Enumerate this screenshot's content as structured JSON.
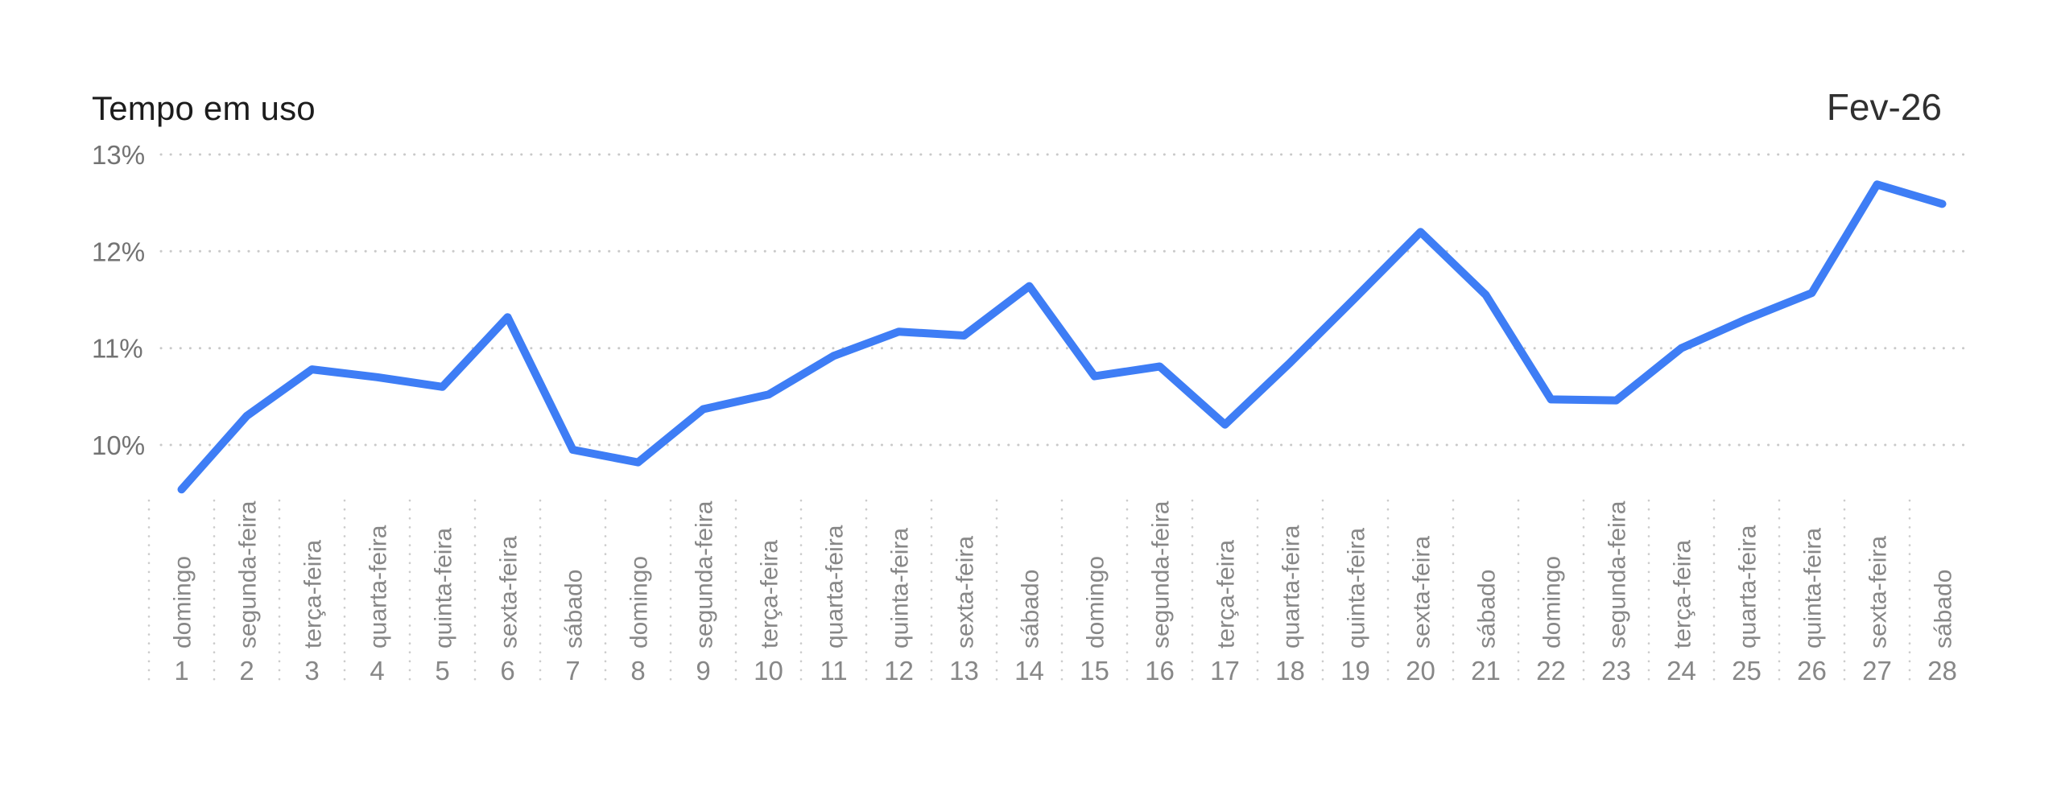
{
  "header": {
    "title": "Tempo em uso",
    "period_label": "Fev-26"
  },
  "colors": {
    "background": "#ffffff",
    "line": "#3e7df5",
    "grid_dot": "#c9c9c9",
    "separator_dot": "#cccccc",
    "y_tick_text": "#737373",
    "x_label_text": "#878787",
    "title_text": "#1c1c1c",
    "period_text": "#303030"
  },
  "chart_data": {
    "type": "line",
    "title": "Tempo em uso",
    "period": "Fev-26",
    "unit": "%",
    "x": [
      1,
      2,
      3,
      4,
      5,
      6,
      7,
      8,
      9,
      10,
      11,
      12,
      13,
      14,
      15,
      16,
      17,
      18,
      19,
      20,
      21,
      22,
      23,
      24,
      25,
      26,
      27,
      28
    ],
    "x_weekdays": [
      "domingo",
      "segunda-feira",
      "terça-feira",
      "quarta-feira",
      "quinta-feira",
      "sexta-feira",
      "sábado",
      "domingo",
      "segunda-feira",
      "terça-feira",
      "quarta-feira",
      "quinta-feira",
      "sexta-feira",
      "sábado",
      "domingo",
      "segunda-feira",
      "terça-feira",
      "quarta-feira",
      "quinta-feira",
      "sexta-feira",
      "sábado",
      "domingo",
      "segunda-feira",
      "terça-feira",
      "quarta-feira",
      "quinta-feira",
      "sexta-feira",
      "sábado"
    ],
    "series": [
      {
        "name": "Tempo em uso",
        "values": [
          9.54,
          10.3,
          10.78,
          10.7,
          10.6,
          11.32,
          9.95,
          9.82,
          10.37,
          10.52,
          10.92,
          11.17,
          11.13,
          11.64,
          10.71,
          10.81,
          10.21,
          10.85,
          11.52,
          12.2,
          11.55,
          10.47,
          10.46,
          11.0,
          11.3,
          11.57,
          12.69,
          12.49
        ]
      }
    ],
    "y_tick_labels": [
      "13%",
      "12%",
      "11%",
      "10%"
    ],
    "y_tick_values": [
      13,
      12,
      11,
      10
    ],
    "ylim": [
      9.4,
      13.2
    ],
    "grid": "dotted-horizontal-gridlines-and-vertical-day-separators",
    "legend_position": "none"
  }
}
